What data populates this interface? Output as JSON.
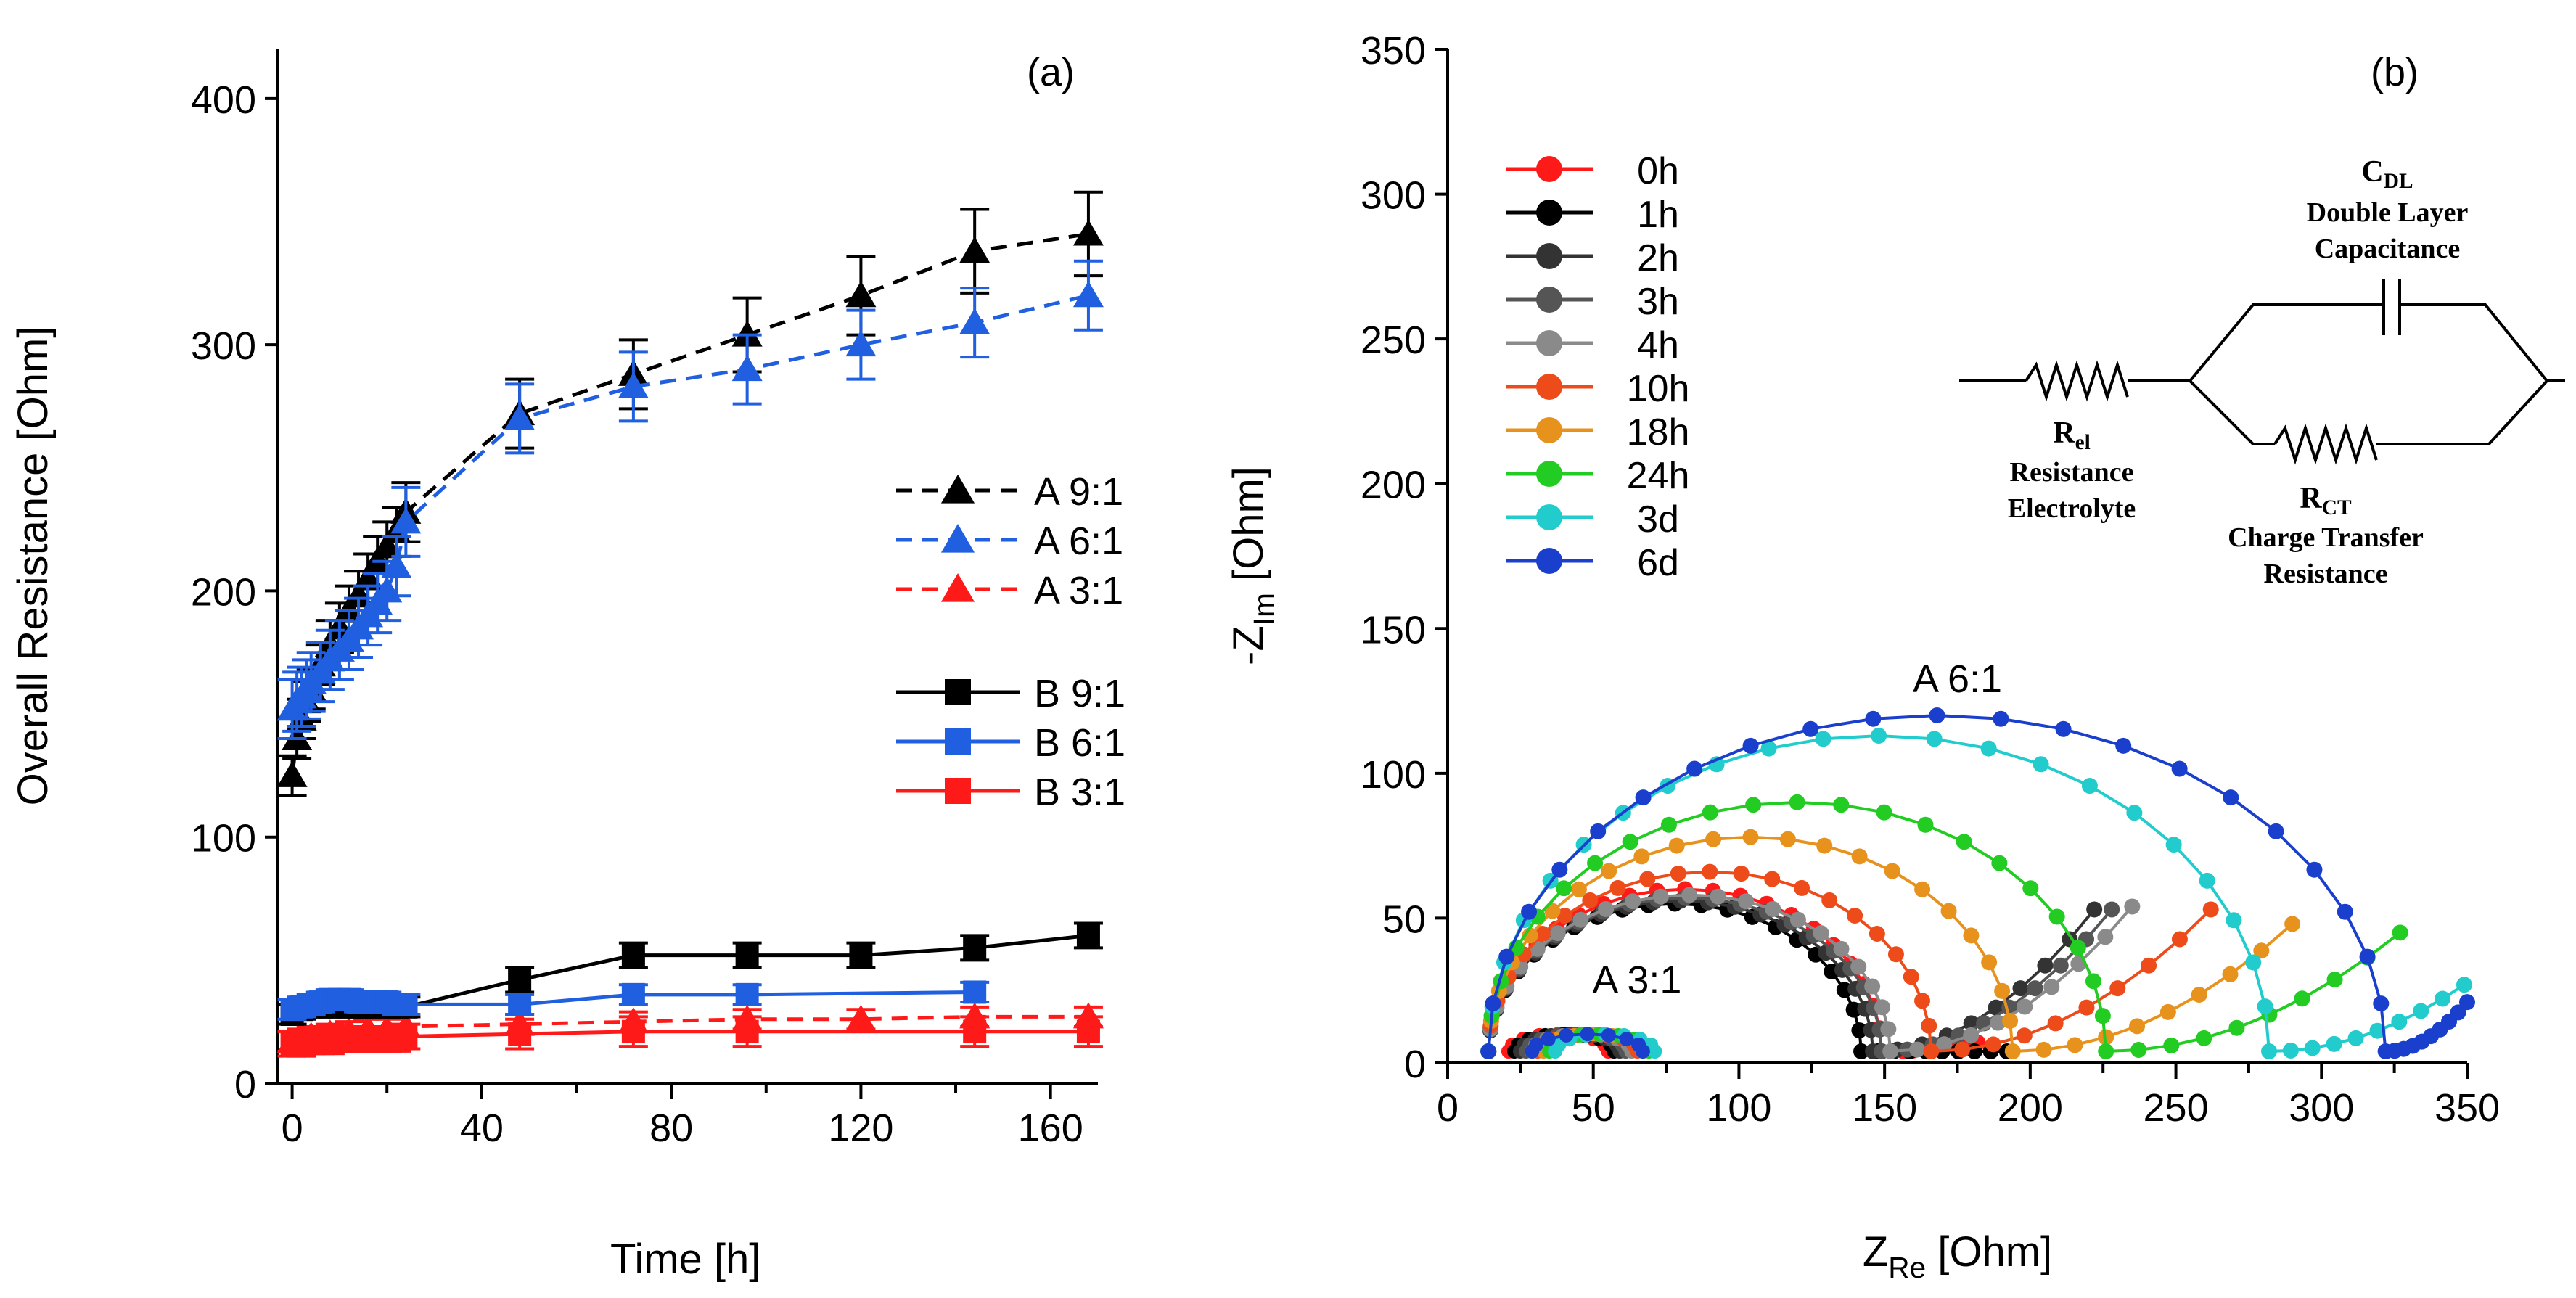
{
  "chart_data": [
    {
      "panel": "(a)",
      "type": "line",
      "xlabel": "Time [h]",
      "ylabel": "Overall Resistance [Ohm]",
      "xlim": [
        -3,
        170
      ],
      "ylim": [
        0,
        420
      ],
      "xticks": [
        0,
        40,
        80,
        120,
        160
      ],
      "yticks": [
        0,
        100,
        200,
        300,
        400
      ],
      "legend_position": "right",
      "series": [
        {
          "name": "A 9:1",
          "color": "#000000",
          "dash": true,
          "marker": "triangle",
          "x": [
            0,
            1,
            2,
            3,
            4,
            6,
            8,
            10,
            12,
            14,
            16,
            18,
            20,
            22,
            24,
            48,
            72,
            96,
            120,
            144,
            168
          ],
          "y": [
            125,
            140,
            148,
            155,
            160,
            170,
            178,
            185,
            192,
            198,
            205,
            212,
            218,
            224,
            232,
            272,
            288,
            304,
            320,
            338,
            345
          ],
          "err": [
            8,
            8,
            8,
            8,
            8,
            8,
            10,
            10,
            10,
            10,
            10,
            10,
            10,
            10,
            12,
            14,
            14,
            15,
            16,
            17,
            17
          ]
        },
        {
          "name": "A 6:1",
          "color": "#1f5fe0",
          "dash": true,
          "marker": "triangle",
          "x": [
            0,
            1,
            2,
            3,
            4,
            6,
            8,
            10,
            12,
            14,
            16,
            18,
            20,
            22,
            24,
            48,
            72,
            96,
            120,
            144,
            168
          ],
          "y": [
            152,
            155,
            157,
            160,
            163,
            167,
            172,
            176,
            180,
            185,
            190,
            195,
            200,
            210,
            228,
            270,
            283,
            290,
            300,
            309,
            320
          ],
          "err": [
            12,
            12,
            12,
            12,
            12,
            12,
            12,
            12,
            12,
            12,
            12,
            12,
            12,
            12,
            14,
            14,
            14,
            14,
            14,
            14,
            14
          ]
        },
        {
          "name": "A 3:1",
          "color": "#ff1a1a",
          "dash": true,
          "marker": "triangle",
          "x": [
            0,
            2,
            4,
            8,
            12,
            16,
            20,
            24,
            48,
            72,
            96,
            120,
            144,
            168
          ],
          "y": [
            17,
            18,
            19,
            20,
            21,
            22,
            22,
            23,
            24,
            25,
            26,
            26,
            27,
            27
          ],
          "err": [
            4,
            4,
            4,
            4,
            4,
            4,
            4,
            4,
            4,
            4,
            4,
            4,
            4,
            4
          ]
        },
        {
          "name": "B 9:1",
          "color": "#000000",
          "dash": false,
          "marker": "square",
          "x": [
            0,
            2,
            4,
            6,
            8,
            10,
            12,
            14,
            16,
            18,
            20,
            22,
            24,
            48,
            72,
            96,
            120,
            144,
            168
          ],
          "y": [
            28,
            30,
            31,
            31,
            31,
            31,
            31,
            31,
            31,
            31,
            31,
            31,
            31,
            42,
            52,
            52,
            52,
            55,
            60
          ],
          "err": [
            4,
            4,
            4,
            4,
            4,
            4,
            4,
            4,
            4,
            4,
            4,
            4,
            4,
            5,
            5,
            5,
            5,
            5,
            5
          ]
        },
        {
          "name": "B 6:1",
          "color": "#1f5fe0",
          "dash": false,
          "marker": "square",
          "x": [
            0,
            2,
            4,
            6,
            8,
            10,
            12,
            14,
            16,
            18,
            20,
            22,
            24,
            48,
            72,
            96,
            144
          ],
          "y": [
            30,
            31,
            32,
            33,
            34,
            34,
            34,
            33,
            33,
            33,
            33,
            32,
            32,
            32,
            36,
            36,
            37
          ],
          "err": [
            4,
            4,
            4,
            4,
            4,
            4,
            4,
            4,
            4,
            4,
            4,
            4,
            4,
            4,
            4,
            4,
            4
          ]
        },
        {
          "name": "B 3:1",
          "color": "#ff1a1a",
          "dash": false,
          "marker": "square",
          "x": [
            0,
            2,
            4,
            6,
            8,
            10,
            12,
            14,
            16,
            18,
            20,
            22,
            24,
            48,
            72,
            96,
            144,
            168
          ],
          "y": [
            16,
            16,
            17,
            17,
            17,
            18,
            18,
            18,
            18,
            18,
            18,
            18,
            19,
            20,
            21,
            21,
            21,
            21
          ],
          "err": [
            5,
            5,
            5,
            5,
            5,
            5,
            5,
            5,
            5,
            5,
            5,
            5,
            5,
            6,
            6,
            6,
            6,
            6
          ]
        }
      ]
    },
    {
      "panel": "(b)",
      "type": "scatter",
      "xlabel_main": "Z",
      "xlabel_sub": "Re",
      "xlabel_tail": " [Ohm]",
      "ylabel_main": "-Z",
      "ylabel_sub": "Im",
      "ylabel_tail": " [Ohm]",
      "xlim": [
        0,
        350
      ],
      "ylim": [
        0,
        350
      ],
      "xticks": [
        0,
        50,
        100,
        150,
        200,
        250,
        300,
        350
      ],
      "yticks": [
        0,
        50,
        100,
        150,
        200,
        250,
        300,
        350
      ],
      "legend_position": "top-left",
      "annotations": [
        "A 6:1",
        "A 3:1"
      ],
      "series": [
        {
          "name": "0h",
          "color": "#ff1a1a",
          "r0": 14,
          "d": 135,
          "h": 56,
          "tail_end": [
            182,
            7
          ],
          "small_c": 38,
          "small_r": 9
        },
        {
          "name": "1h",
          "color": "#000000",
          "r0": 14,
          "d": 128,
          "h": 51,
          "tail_end": [
            192,
            4
          ],
          "small_c": 40,
          "small_r": 9
        },
        {
          "name": "2h",
          "color": "#333333",
          "r0": 14,
          "d": 132,
          "h": 52,
          "tail_end": [
            222,
            53
          ],
          "small_c": 42,
          "small_r": 9
        },
        {
          "name": "3h",
          "color": "#555555",
          "r0": 14,
          "d": 135,
          "h": 53,
          "tail_end": [
            228,
            53
          ],
          "small_c": 44,
          "small_r": 9
        },
        {
          "name": "4h",
          "color": "#8a8a8a",
          "r0": 14,
          "d": 138,
          "h": 54,
          "tail_end": [
            235,
            54
          ],
          "small_c": 46,
          "small_r": 9
        },
        {
          "name": "10h",
          "color": "#ee4b1b",
          "r0": 14,
          "d": 152,
          "h": 62,
          "tail_end": [
            262,
            53
          ],
          "small_c": 48,
          "small_r": 9
        },
        {
          "name": "18h",
          "color": "#e8921e",
          "r0": 14,
          "d": 180,
          "h": 74,
          "tail_end": [
            290,
            48
          ],
          "small_c": 50,
          "small_r": 9
        },
        {
          "name": "24h",
          "color": "#22cc22",
          "r0": 14,
          "d": 212,
          "h": 86,
          "tail_end": [
            327,
            45
          ],
          "small_c": 52,
          "small_r": 9
        },
        {
          "name": "3d",
          "color": "#22cccc",
          "r0": 14,
          "d": 268,
          "h": 109,
          "tail_end": [
            349,
            27
          ],
          "small_c": 54,
          "small_r": 9
        },
        {
          "name": "6d",
          "color": "#1a3fcc",
          "r0": 14,
          "d": 308,
          "h": 116,
          "tail_end": [
            350,
            21
          ],
          "small_c": 48,
          "small_r": 10
        }
      ]
    }
  ],
  "circuit": {
    "cdl_main": "C",
    "cdl_sub": "DL",
    "cdl_line1": "Double Layer",
    "cdl_line2": "Capacitance",
    "rel_main": "R",
    "rel_sub": "el",
    "rel_line1": "Resistance",
    "rel_line2": "Electrolyte",
    "rct_main": "R",
    "rct_sub": "CT",
    "rct_line1": "Charge Transfer",
    "rct_line2": "Resistance"
  }
}
